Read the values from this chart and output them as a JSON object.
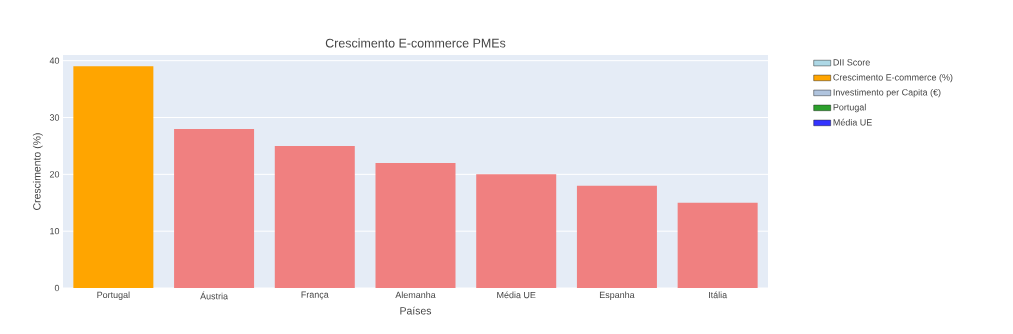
{
  "chart_data": {
    "type": "bar",
    "title": "Crescimento E-commerce PMEs",
    "xlabel": "Países",
    "ylabel": "Crescimento (%)",
    "categories": [
      "Portugal",
      "Áustria",
      "França",
      "Alemanha",
      "Média UE",
      "Espanha",
      "Itália"
    ],
    "series": [
      {
        "name": "DII Score",
        "color": "#add8e6",
        "values": [
          null,
          null,
          null,
          null,
          null,
          null,
          null
        ]
      },
      {
        "name": "Crescimento E-commerce (%)",
        "color": "#ffa500",
        "colors": [
          "#ffa500",
          "#f08080",
          "#f08080",
          "#f08080",
          "#f08080",
          "#f08080",
          "#f08080"
        ],
        "values": [
          39,
          28,
          25,
          22,
          20,
          18,
          15
        ]
      },
      {
        "name": "Investimento per Capita (€)",
        "color": "#b0c4de",
        "values": [
          null,
          null,
          null,
          null,
          null,
          null,
          null
        ]
      },
      {
        "name": "Portugal",
        "color": "#2ca02c",
        "values": [
          null,
          null,
          null,
          null,
          null,
          null,
          null
        ]
      },
      {
        "name": "Média UE",
        "color": "#3333ff",
        "values": [
          null,
          null,
          null,
          null,
          null,
          null,
          null
        ]
      }
    ],
    "ylim": [
      0,
      41
    ],
    "yticks": [
      0,
      10,
      20,
      30,
      40
    ],
    "grid": "y",
    "legend": "right"
  }
}
